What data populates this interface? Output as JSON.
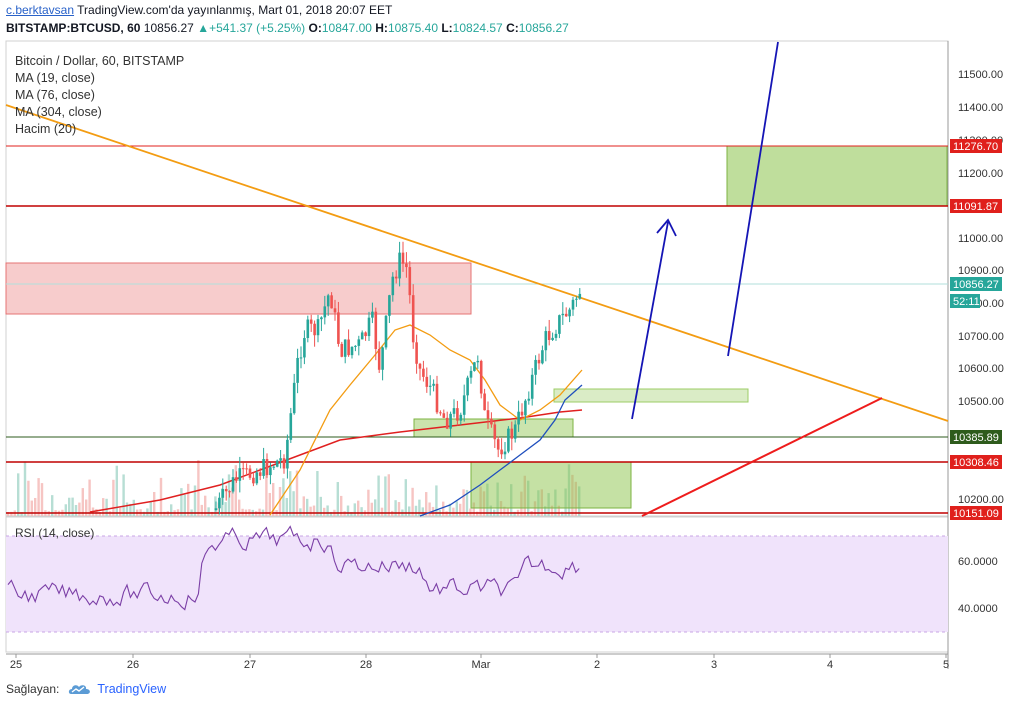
{
  "header": {
    "user": "c.berktavsan",
    "published": "TradingView.com'da yayınlanmış, Mart 01, 2018 20:07 EET",
    "symbol": "BITSTAMP:BTCUSD, 60",
    "last": "10856.27",
    "change": "+541.37 (+5.25%)",
    "o_label": "O:",
    "o": "10847.00",
    "h_label": "H:",
    "h": "10875.40",
    "l_label": "L:",
    "l": "10824.57",
    "c_label": "C:",
    "c": "10856.27",
    "up_arrow": "▲"
  },
  "legend": {
    "title": "Bitcoin / Dollar, 60, BITSTAMP",
    "items": [
      "MA (19, close)",
      "MA (76, close)",
      "MA (304, close)",
      "Hacim (20)"
    ]
  },
  "rsi": {
    "label": "RSI (14, close)",
    "ticks": [
      "60.0000",
      "40.0000"
    ]
  },
  "price_axis": {
    "ticks": [
      "11500.00",
      "11400.00",
      "11300.00",
      "11200.00",
      "11000.00",
      "10900.00",
      "10800.00",
      "10700.00",
      "10600.00",
      "10500.00",
      "10200.00"
    ],
    "levels": [
      {
        "label": "11276.70",
        "color": "#e0201c"
      },
      {
        "label": "11091.87",
        "color": "#e0201c"
      },
      {
        "label": "10856.27",
        "color": "#26a69a"
      },
      {
        "label": "52:11",
        "color": "#26a69a"
      },
      {
        "label": "10385.89",
        "color": "#2e5b1c"
      },
      {
        "label": "10308.46",
        "color": "#e0201c"
      },
      {
        "label": "10151.09",
        "color": "#e0201c"
      }
    ]
  },
  "time_axis": {
    "ticks": [
      "25",
      "26",
      "27",
      "28",
      "Mar",
      "2",
      "3",
      "4",
      "5"
    ]
  },
  "footer": {
    "label": "Sağlayan:",
    "brand": "TradingView"
  },
  "colors": {
    "up": "#26a69a",
    "down": "#ef5350",
    "ma19": "#f39c12",
    "ma76": "#1f4fbd",
    "ma304": "#e02020"
  }
}
